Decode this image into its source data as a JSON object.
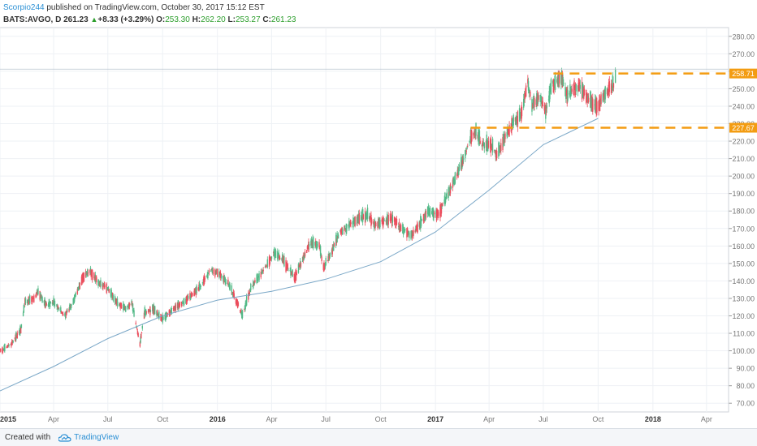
{
  "header": {
    "author": "Scorpio244",
    "published": " published on TradingView.com, October 30, 2017 15:12 EST",
    "symbol": "BATS:AVGO, D",
    "last": "261.23",
    "change": "+8.33 (+3.29%)",
    "open_label": "O:",
    "open": "253.30",
    "high_label": "H:",
    "high": "262.20",
    "low_label": "L:",
    "low": "253.27",
    "close_label": "C:",
    "close": "261.23"
  },
  "footer": {
    "created": "Created with",
    "brand": "TradingView"
  },
  "colors": {
    "up": "#53b987",
    "down": "#eb4d5c",
    "ma": "#7aa7c7",
    "level": "#f39c12",
    "grid": "#eef1f5",
    "axis": "#777777"
  },
  "chart_data": {
    "type": "candlestick",
    "symbol": "BATS:AVGO",
    "interval": "D",
    "ylim": [
      65,
      285
    ],
    "y_ticks": [
      "70.00",
      "80.00",
      "90.00",
      "100.00",
      "110.00",
      "120.00",
      "130.00",
      "140.00",
      "150.00",
      "160.00",
      "170.00",
      "180.00",
      "190.00",
      "200.00",
      "210.00",
      "220.00",
      "230.00",
      "240.00",
      "250.00",
      "260.00",
      "270.00",
      "280.00"
    ],
    "x_ticks": [
      {
        "label": "2015",
        "date": "2015-01-01"
      },
      {
        "label": "Apr",
        "date": "2015-04-01"
      },
      {
        "label": "Jul",
        "date": "2015-07-01"
      },
      {
        "label": "Oct",
        "date": "2015-10-01"
      },
      {
        "label": "2016",
        "date": "2016-01-01"
      },
      {
        "label": "Apr",
        "date": "2016-04-01"
      },
      {
        "label": "Jul",
        "date": "2016-07-01"
      },
      {
        "label": "Oct",
        "date": "2016-10-01"
      },
      {
        "label": "2017",
        "date": "2017-01-01"
      },
      {
        "label": "Apr",
        "date": "2017-04-01"
      },
      {
        "label": "Jul",
        "date": "2017-07-01"
      },
      {
        "label": "Oct",
        "date": "2017-10-01"
      },
      {
        "label": "2018",
        "date": "2018-01-01"
      },
      {
        "label": "Apr",
        "date": "2018-04-01"
      }
    ],
    "xlim": [
      "2015-01-01",
      "2018-05-08"
    ],
    "price_path": [
      [
        "2015-01-02",
        100
      ],
      [
        "2015-01-20",
        104
      ],
      [
        "2015-02-05",
        112
      ],
      [
        "2015-02-12",
        128
      ],
      [
        "2015-03-01",
        130
      ],
      [
        "2015-03-05",
        134
      ],
      [
        "2015-03-20",
        126
      ],
      [
        "2015-04-01",
        128
      ],
      [
        "2015-04-20",
        120
      ],
      [
        "2015-05-01",
        126
      ],
      [
        "2015-05-20",
        142
      ],
      [
        "2015-06-01",
        146
      ],
      [
        "2015-06-15",
        139
      ],
      [
        "2015-07-01",
        136
      ],
      [
        "2015-07-15",
        128
      ],
      [
        "2015-08-01",
        124
      ],
      [
        "2015-08-10",
        128
      ],
      [
        "2015-08-24",
        104
      ],
      [
        "2015-09-01",
        122
      ],
      [
        "2015-09-15",
        124
      ],
      [
        "2015-10-01",
        118
      ],
      [
        "2015-10-20",
        124
      ],
      [
        "2015-11-05",
        128
      ],
      [
        "2015-11-20",
        132
      ],
      [
        "2015-12-05",
        138
      ],
      [
        "2015-12-20",
        146
      ],
      [
        "2016-01-05",
        144
      ],
      [
        "2016-01-20",
        138
      ],
      [
        "2016-02-05",
        126
      ],
      [
        "2016-02-12",
        120
      ],
      [
        "2016-02-26",
        136
      ],
      [
        "2016-03-10",
        142
      ],
      [
        "2016-03-25",
        150
      ],
      [
        "2016-04-05",
        156
      ],
      [
        "2016-04-20",
        152
      ],
      [
        "2016-05-01",
        146
      ],
      [
        "2016-05-10",
        142
      ],
      [
        "2016-05-25",
        154
      ],
      [
        "2016-06-05",
        162
      ],
      [
        "2016-06-20",
        160
      ],
      [
        "2016-06-27",
        148
      ],
      [
        "2016-07-10",
        156
      ],
      [
        "2016-07-25",
        168
      ],
      [
        "2016-08-10",
        172
      ],
      [
        "2016-08-25",
        176
      ],
      [
        "2016-09-10",
        178
      ],
      [
        "2016-09-20",
        172
      ],
      [
        "2016-10-05",
        174
      ],
      [
        "2016-10-20",
        176
      ],
      [
        "2016-11-05",
        170
      ],
      [
        "2016-11-20",
        166
      ],
      [
        "2016-12-05",
        172
      ],
      [
        "2016-12-20",
        180
      ],
      [
        "2017-01-05",
        178
      ],
      [
        "2017-01-20",
        188
      ],
      [
        "2017-02-05",
        200
      ],
      [
        "2017-02-20",
        212
      ],
      [
        "2017-03-01",
        222
      ],
      [
        "2017-03-10",
        226
      ],
      [
        "2017-03-20",
        218
      ],
      [
        "2017-04-05",
        218
      ],
      [
        "2017-04-13",
        212
      ],
      [
        "2017-04-25",
        220
      ],
      [
        "2017-05-10",
        230
      ],
      [
        "2017-05-25",
        236
      ],
      [
        "2017-06-05",
        254
      ],
      [
        "2017-06-12",
        240
      ],
      [
        "2017-06-25",
        246
      ],
      [
        "2017-07-05",
        236
      ],
      [
        "2017-07-15",
        252
      ],
      [
        "2017-08-01",
        256
      ],
      [
        "2017-08-10",
        246
      ],
      [
        "2017-08-20",
        250
      ],
      [
        "2017-09-01",
        252
      ],
      [
        "2017-09-10",
        246
      ],
      [
        "2017-09-20",
        242
      ],
      [
        "2017-10-01",
        240
      ],
      [
        "2017-10-10",
        246
      ],
      [
        "2017-10-20",
        250
      ],
      [
        "2017-10-27",
        253
      ],
      [
        "2017-10-30",
        261
      ]
    ],
    "moving_average": [
      [
        "2015-01-01",
        77
      ],
      [
        "2015-04-01",
        91
      ],
      [
        "2015-07-01",
        107
      ],
      [
        "2015-10-01",
        120
      ],
      [
        "2016-01-01",
        129
      ],
      [
        "2016-04-01",
        134
      ],
      [
        "2016-07-01",
        141
      ],
      [
        "2016-10-01",
        151
      ],
      [
        "2017-01-01",
        168
      ],
      [
        "2017-04-01",
        192
      ],
      [
        "2017-07-01",
        218
      ],
      [
        "2017-10-01",
        233
      ]
    ],
    "horizontal_levels": [
      {
        "value": 258.71,
        "label": "258.71",
        "from": "2017-07-18"
      },
      {
        "value": 227.67,
        "label": "227.67",
        "from": "2017-03-01"
      }
    ]
  }
}
